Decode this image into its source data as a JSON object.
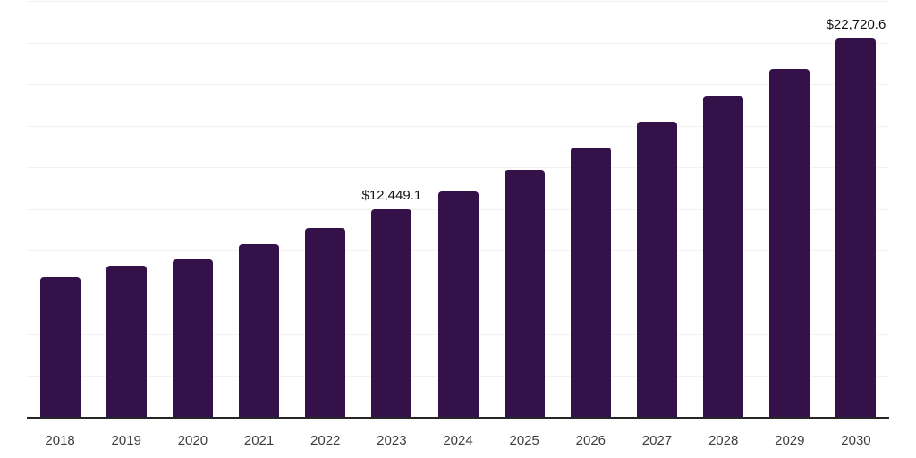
{
  "chart_data": {
    "type": "bar",
    "title": "",
    "xlabel": "",
    "ylabel": "",
    "categories": [
      "2018",
      "2019",
      "2020",
      "2021",
      "2022",
      "2023",
      "2024",
      "2025",
      "2026",
      "2027",
      "2028",
      "2029",
      "2030"
    ],
    "values": [
      8400,
      9100,
      9480,
      10390,
      11360,
      12449.1,
      13570,
      14860,
      16210,
      17770,
      19280,
      20940,
      22720.6
    ],
    "annotations": [
      {
        "category": "2023",
        "label": "$12,449.1"
      },
      {
        "category": "2030",
        "label": "$22,720.6"
      }
    ],
    "ylim": [
      0,
      25000
    ],
    "gridline_step": 2500,
    "grid": "horizontal",
    "legend_position": "none",
    "colors": {
      "bar": "#341149",
      "axis": "#262626",
      "gridline": "#f2f2f2",
      "tick_label": "#3d3d3d",
      "annotation": "#111111",
      "background": "#ffffff"
    }
  }
}
